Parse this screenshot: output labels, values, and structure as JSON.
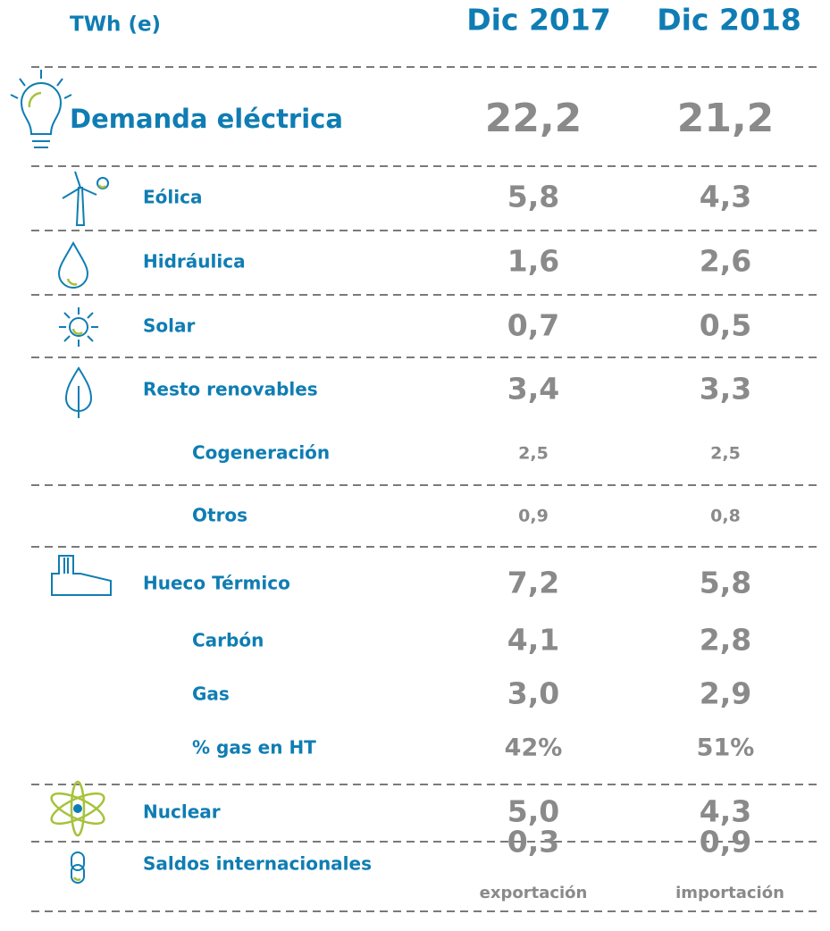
{
  "header": {
    "unit": "TWh (e)",
    "columns": [
      "Dic 2017",
      "Dic 2018"
    ]
  },
  "rows": [
    {
      "label": "Demanda eléctrica",
      "values": [
        "22,2",
        "21,2"
      ]
    },
    {
      "label": "Eólica",
      "values": [
        "5,8",
        "4,3"
      ]
    },
    {
      "label": "Hidráulica",
      "values": [
        "1,6",
        "2,6"
      ]
    },
    {
      "label": "Solar",
      "values": [
        "0,7",
        "0,5"
      ]
    },
    {
      "label": "Resto renovables",
      "values": [
        "3,4",
        "3,3"
      ]
    },
    {
      "label": "Cogeneración",
      "values": [
        "2,5",
        "2,5"
      ]
    },
    {
      "label": "Otros",
      "values": [
        "0,9",
        "0,8"
      ]
    },
    {
      "label": "Hueco Térmico",
      "values": [
        "7,2",
        "5,8"
      ]
    },
    {
      "label": "Carbón",
      "values": [
        "4,1",
        "2,8"
      ]
    },
    {
      "label": "Gas",
      "values": [
        "3,0",
        "2,9"
      ]
    },
    {
      "label": "% gas en HT",
      "values": [
        "42%",
        "51%"
      ]
    },
    {
      "label": "Nuclear",
      "values": [
        "5,0",
        "4,3"
      ]
    },
    {
      "label": "Saldos internacionales",
      "values": [
        "0,3",
        "0,9"
      ],
      "notes": [
        "exportación",
        "importación"
      ]
    }
  ]
}
